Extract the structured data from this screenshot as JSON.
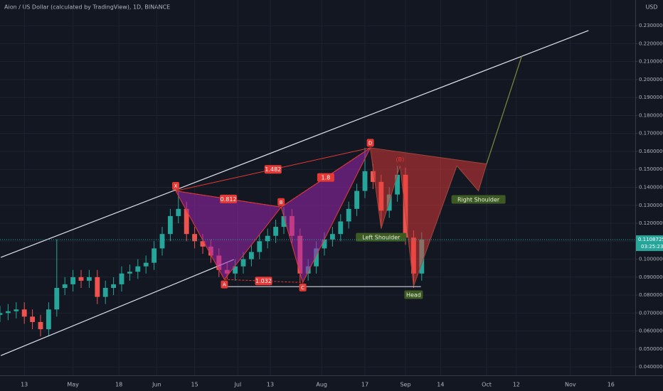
{
  "chart_data": {
    "type": "candlestick",
    "title": "Aion / US Dollar (calculated by TradingView), 1D, BINANCE",
    "currency": "USD",
    "up_color": "#26a69a",
    "down_color": "#ef5350",
    "grid": true,
    "x": [
      3,
      6,
      9,
      12,
      15,
      18,
      21,
      24,
      27,
      30,
      33,
      36,
      39,
      42,
      45,
      48,
      51,
      54,
      57,
      60,
      63,
      66,
      69,
      72,
      75,
      78,
      81,
      84,
      87,
      90,
      93,
      96,
      99,
      102,
      105,
      108,
      111,
      114,
      117,
      120,
      123,
      126,
      129,
      132,
      135,
      138,
      141,
      144,
      147,
      150,
      153,
      156,
      159
    ],
    "open": [
      0.069,
      0.07,
      0.071,
      0.072,
      0.068,
      0.065,
      0.061,
      0.072,
      0.084,
      0.086,
      0.09,
      0.088,
      0.09,
      0.079,
      0.084,
      0.086,
      0.092,
      0.093,
      0.096,
      0.098,
      0.106,
      0.114,
      0.124,
      0.128,
      0.114,
      0.11,
      0.107,
      0.102,
      0.094,
      0.092,
      0.096,
      0.1,
      0.104,
      0.11,
      0.113,
      0.118,
      0.124,
      0.113,
      0.092,
      0.096,
      0.106,
      0.111,
      0.114,
      0.121,
      0.128,
      0.138,
      0.149,
      0.143,
      0.127,
      0.136,
      0.147,
      0.112,
      0.092
    ],
    "high": [
      0.074,
      0.075,
      0.076,
      0.076,
      0.072,
      0.069,
      0.076,
      0.111,
      0.09,
      0.094,
      0.094,
      0.094,
      0.094,
      0.088,
      0.09,
      0.096,
      0.097,
      0.1,
      0.102,
      0.11,
      0.118,
      0.128,
      0.138,
      0.132,
      0.118,
      0.114,
      0.111,
      0.106,
      0.098,
      0.1,
      0.104,
      0.108,
      0.114,
      0.117,
      0.122,
      0.129,
      0.128,
      0.117,
      0.1,
      0.11,
      0.115,
      0.118,
      0.125,
      0.132,
      0.142,
      0.162,
      0.153,
      0.147,
      0.14,
      0.152,
      0.151,
      0.116,
      0.115
    ],
    "low": [
      0.065,
      0.066,
      0.067,
      0.064,
      0.061,
      0.057,
      0.057,
      0.068,
      0.08,
      0.082,
      0.084,
      0.084,
      0.075,
      0.075,
      0.08,
      0.082,
      0.088,
      0.089,
      0.092,
      0.094,
      0.102,
      0.11,
      0.12,
      0.11,
      0.106,
      0.103,
      0.098,
      0.09,
      0.0887,
      0.088,
      0.092,
      0.096,
      0.1,
      0.106,
      0.109,
      0.114,
      0.109,
      0.087,
      0.088,
      0.092,
      0.102,
      0.107,
      0.11,
      0.117,
      0.124,
      0.134,
      0.139,
      0.117,
      0.123,
      0.132,
      0.108,
      0.084,
      0.088
    ],
    "close": [
      0.07,
      0.071,
      0.072,
      0.068,
      0.065,
      0.061,
      0.072,
      0.084,
      0.086,
      0.09,
      0.088,
      0.09,
      0.079,
      0.084,
      0.086,
      0.092,
      0.093,
      0.096,
      0.098,
      0.106,
      0.114,
      0.124,
      0.128,
      0.114,
      0.11,
      0.107,
      0.102,
      0.094,
      0.092,
      0.096,
      0.1,
      0.104,
      0.11,
      0.113,
      0.118,
      0.124,
      0.113,
      0.092,
      0.096,
      0.106,
      0.111,
      0.114,
      0.121,
      0.128,
      0.138,
      0.149,
      0.143,
      0.127,
      0.136,
      0.147,
      0.112,
      0.092,
      0.1109
    ],
    "xlim": [
      3,
      238
    ],
    "ylim": [
      0.0353,
      0.2443
    ],
    "xticks": [
      {
        "value": 12,
        "label": "13"
      },
      {
        "value": 30,
        "label": "May"
      },
      {
        "value": 47,
        "label": "18"
      },
      {
        "value": 61,
        "label": "Jun"
      },
      {
        "value": 75,
        "label": "15"
      },
      {
        "value": 91,
        "label": "Jul"
      },
      {
        "value": 103,
        "label": "13"
      },
      {
        "value": 122,
        "label": "Aug"
      },
      {
        "value": 138,
        "label": "17"
      },
      {
        "value": 153,
        "label": "Sep"
      },
      {
        "value": 166,
        "label": "14"
      },
      {
        "value": 183,
        "label": "Oct"
      },
      {
        "value": 194,
        "label": "12"
      },
      {
        "value": 214,
        "label": "Nov"
      },
      {
        "value": 229,
        "label": "16"
      }
    ],
    "yticks": [
      {
        "value": 0.04,
        "label": "0.04000000"
      },
      {
        "value": 0.05,
        "label": "0.05000000"
      },
      {
        "value": 0.06,
        "label": "0.06000000"
      },
      {
        "value": 0.07,
        "label": "0.07000000"
      },
      {
        "value": 0.08,
        "label": "0.08000000"
      },
      {
        "value": 0.09,
        "label": "0.09000000"
      },
      {
        "value": 0.1,
        "label": "0.10000000"
      },
      {
        "value": 0.11,
        "label": "0.11000000"
      },
      {
        "value": 0.12,
        "label": "0.12000000"
      },
      {
        "value": 0.13,
        "label": "0.13000000"
      },
      {
        "value": 0.14,
        "label": "0.14000000"
      },
      {
        "value": 0.15,
        "label": "0.15000000"
      },
      {
        "value": 0.16,
        "label": "0.16000000"
      },
      {
        "value": 0.17,
        "label": "0.17000000"
      },
      {
        "value": 0.18,
        "label": "0.18000000"
      },
      {
        "value": 0.19,
        "label": "0.19000000"
      },
      {
        "value": 0.2,
        "label": "0.20000000"
      },
      {
        "value": 0.21,
        "label": "0.21000000"
      },
      {
        "value": 0.22,
        "label": "0.22000000"
      },
      {
        "value": 0.23,
        "label": "0.23000000"
      }
    ],
    "last_price": 0.11087255,
    "countdown": "03:25:23",
    "trendlines": [
      {
        "x": [
          3.3,
          220.7
        ],
        "y": [
          0.101,
          0.2273
        ]
      },
      {
        "x": [
          3.3,
          89.5
        ],
        "y": [
          0.0463,
          0.0998
        ]
      }
    ],
    "support": {
      "x": [
        85.5,
        158.7
      ],
      "y": 0.0847
    },
    "pattern": {
      "points": [
        {
          "label": "X",
          "x": 68,
          "y": 0.138
        },
        {
          "label": "A",
          "x": 86,
          "y": 0.0887
        },
        {
          "label": "B",
          "x": 107,
          "y": 0.129
        },
        {
          "label": "C",
          "x": 115,
          "y": 0.087
        },
        {
          "label": "D",
          "x": 140,
          "y": 0.162
        }
      ],
      "ratios": [
        0.812,
        1.032,
        1.482,
        1.8
      ]
    },
    "head_shoulders": [
      {
        "x": 140,
        "y": 0.162
      },
      {
        "x": 144,
        "y": 0.117,
        "label": "Left Shoulder"
      },
      {
        "x": 151,
        "y": 0.152,
        "label": "(B)"
      },
      {
        "x": 156,
        "y": 0.085,
        "label": "Head"
      },
      {
        "x": 172,
        "y": 0.152
      },
      {
        "x": 180,
        "y": 0.138,
        "label": "Right Shoulder"
      },
      {
        "x": 183,
        "y": 0.153
      },
      {
        "x": 196,
        "y": 0.213
      }
    ]
  }
}
